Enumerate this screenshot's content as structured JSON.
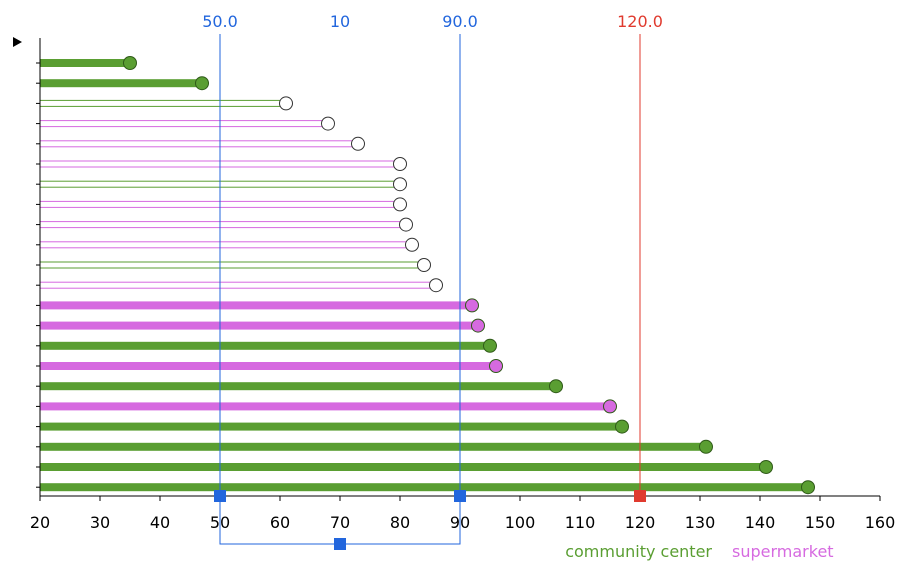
{
  "chart_data": {
    "type": "bar",
    "orientation": "horizontal",
    "style": "lollipop",
    "xlim": [
      20,
      160
    ],
    "xticks": [
      20,
      30,
      40,
      50,
      60,
      70,
      80,
      90,
      100,
      110,
      120,
      130,
      140,
      150,
      160
    ],
    "title": "",
    "xlabel": "",
    "ylabel": "",
    "legend": {
      "placement": "bottom-right",
      "entries": [
        {
          "name": "community center",
          "color": "#5a9e32"
        },
        {
          "name": "supermarket",
          "color": "#d66ae0"
        }
      ]
    },
    "bars": [
      {
        "category": "community center",
        "value": 35,
        "filled": true
      },
      {
        "category": "community center",
        "value": 47,
        "filled": true
      },
      {
        "category": "community center",
        "value": 61,
        "filled": false
      },
      {
        "category": "supermarket",
        "value": 68,
        "filled": false
      },
      {
        "category": "supermarket",
        "value": 73,
        "filled": false
      },
      {
        "category": "supermarket",
        "value": 80,
        "filled": false
      },
      {
        "category": "community center",
        "value": 80,
        "filled": false
      },
      {
        "category": "supermarket",
        "value": 80,
        "filled": false
      },
      {
        "category": "supermarket",
        "value": 81,
        "filled": false
      },
      {
        "category": "supermarket",
        "value": 82,
        "filled": false
      },
      {
        "category": "community center",
        "value": 84,
        "filled": false
      },
      {
        "category": "supermarket",
        "value": 86,
        "filled": false
      },
      {
        "category": "supermarket",
        "value": 92,
        "filled": true
      },
      {
        "category": "supermarket",
        "value": 93,
        "filled": true
      },
      {
        "category": "community center",
        "value": 95,
        "filled": true
      },
      {
        "category": "supermarket",
        "value": 96,
        "filled": true
      },
      {
        "category": "community center",
        "value": 106,
        "filled": true
      },
      {
        "category": "supermarket",
        "value": 115,
        "filled": true
      },
      {
        "category": "community center",
        "value": 117,
        "filled": true
      },
      {
        "category": "community center",
        "value": 131,
        "filled": true
      },
      {
        "category": "community center",
        "value": 141,
        "filled": true
      },
      {
        "category": "community center",
        "value": 148,
        "filled": true
      }
    ],
    "range_markers": [
      {
        "value": 50,
        "label": "50.0",
        "color": "#2266dd"
      },
      {
        "value": 90,
        "label": "90.0",
        "color": "#2266dd"
      }
    ],
    "range_width_label": "10",
    "range_center": 70,
    "threshold_marker": {
      "value": 120,
      "label": "120.0",
      "color": "#e03a2e"
    }
  }
}
